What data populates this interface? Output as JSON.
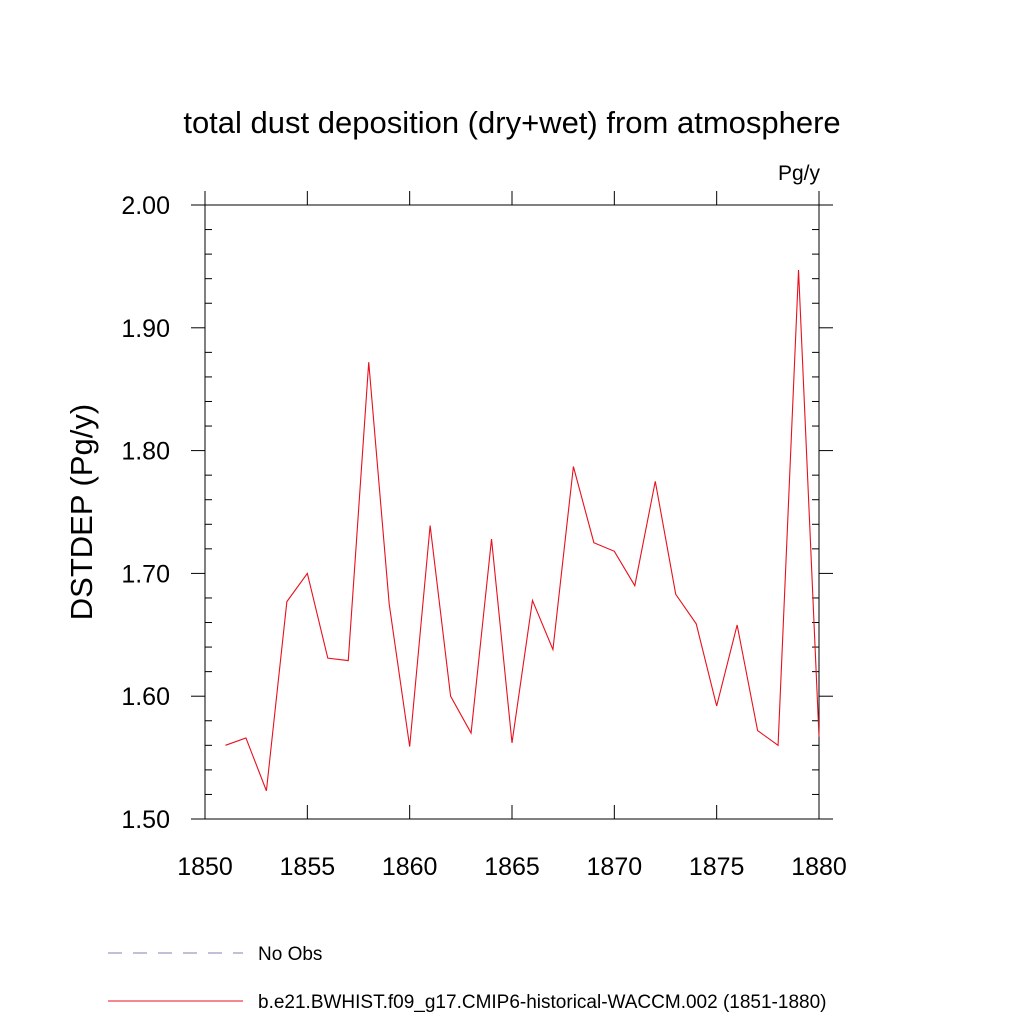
{
  "chart_data": {
    "type": "line",
    "title": "total dust deposition (dry+wet) from atmosphere",
    "units_label": "Pg/y",
    "ylabel": "DSTDEP  (Pg/y)",
    "xlabel": "",
    "xlim": [
      1850,
      1880
    ],
    "ylim": [
      1.5,
      2.0
    ],
    "x_ticks": [
      1850,
      1855,
      1860,
      1865,
      1870,
      1875,
      1880
    ],
    "x_tick_labels": [
      "1850",
      "1855",
      "1860",
      "1865",
      "1870",
      "1875",
      "1880"
    ],
    "y_ticks": [
      1.5,
      1.6,
      1.7,
      1.8,
      1.9,
      2.0
    ],
    "y_tick_labels": [
      "1.50",
      "1.60",
      "1.70",
      "1.80",
      "1.90",
      "2.00"
    ],
    "grid": false,
    "legend_position": "bottom",
    "series": [
      {
        "name": "No Obs",
        "color": "#8a7fb0",
        "style": "dashed",
        "x": [],
        "values": []
      },
      {
        "name": "b.e21.BWHIST.f09_g17.CMIP6-historical-WACCM.002 (1851-1880)",
        "color": "#e8101e",
        "style": "solid",
        "x": [
          1851,
          1852,
          1853,
          1854,
          1855,
          1856,
          1857,
          1858,
          1859,
          1860,
          1861,
          1862,
          1863,
          1864,
          1865,
          1866,
          1867,
          1868,
          1869,
          1870,
          1871,
          1872,
          1873,
          1874,
          1875,
          1876,
          1877,
          1878,
          1879,
          1880
        ],
        "values": [
          1.56,
          1.566,
          1.523,
          1.677,
          1.7,
          1.631,
          1.629,
          1.872,
          1.675,
          1.559,
          1.739,
          1.6,
          1.57,
          1.728,
          1.562,
          1.678,
          1.638,
          1.787,
          1.725,
          1.718,
          1.69,
          1.775,
          1.683,
          1.659,
          1.592,
          1.658,
          1.572,
          1.56,
          1.947,
          1.567
        ]
      }
    ]
  }
}
